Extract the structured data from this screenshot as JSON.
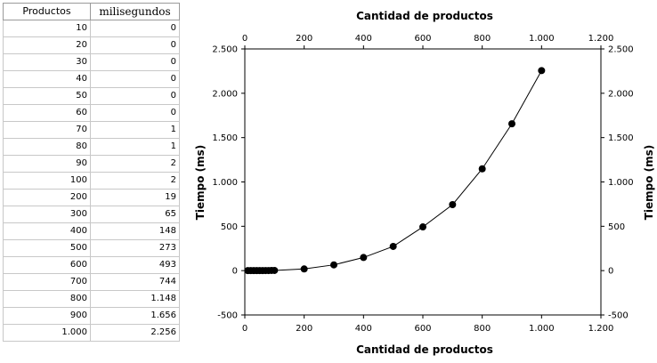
{
  "table": {
    "headers": [
      "Productos",
      "milisegundos"
    ],
    "rows": [
      [
        "10",
        "0"
      ],
      [
        "20",
        "0"
      ],
      [
        "30",
        "0"
      ],
      [
        "40",
        "0"
      ],
      [
        "50",
        "0"
      ],
      [
        "60",
        "0"
      ],
      [
        "70",
        "1"
      ],
      [
        "80",
        "1"
      ],
      [
        "90",
        "2"
      ],
      [
        "100",
        "2"
      ],
      [
        "200",
        "19"
      ],
      [
        "300",
        "65"
      ],
      [
        "400",
        "148"
      ],
      [
        "500",
        "273"
      ],
      [
        "600",
        "493"
      ],
      [
        "700",
        "744"
      ],
      [
        "800",
        "1.148"
      ],
      [
        "900",
        "1.656"
      ],
      [
        "1.000",
        "2.256"
      ]
    ]
  },
  "chart_data": {
    "type": "scatter",
    "title": "",
    "xlabel": "Cantidad de productos",
    "xlabel_top": "Cantidad de productos",
    "ylabel": "Tiempo (ms)",
    "ylabel_right": "Tiempo (ms)",
    "xlim": [
      0,
      1200
    ],
    "ylim": [
      -500,
      2500
    ],
    "xticks": [
      0,
      200,
      400,
      600,
      800,
      1000,
      1200
    ],
    "yticks": [
      -500,
      0,
      500,
      1000,
      1500,
      2000,
      2500
    ],
    "xtick_labels": [
      "0",
      "200",
      "400",
      "600",
      "800",
      "1.000",
      "1.200"
    ],
    "ytick_labels": [
      "-500",
      "0",
      "500",
      "1.000",
      "1.500",
      "2.000",
      "2.500"
    ],
    "grid": false,
    "legend": "none",
    "line_color": "#000000",
    "marker_color": "#000000",
    "x": [
      10,
      20,
      30,
      40,
      50,
      60,
      70,
      80,
      90,
      100,
      200,
      300,
      400,
      500,
      600,
      700,
      800,
      900,
      1000
    ],
    "y": [
      0,
      0,
      0,
      0,
      0,
      0,
      1,
      1,
      2,
      2,
      19,
      65,
      148,
      273,
      493,
      744,
      1148,
      1656,
      2256
    ]
  }
}
